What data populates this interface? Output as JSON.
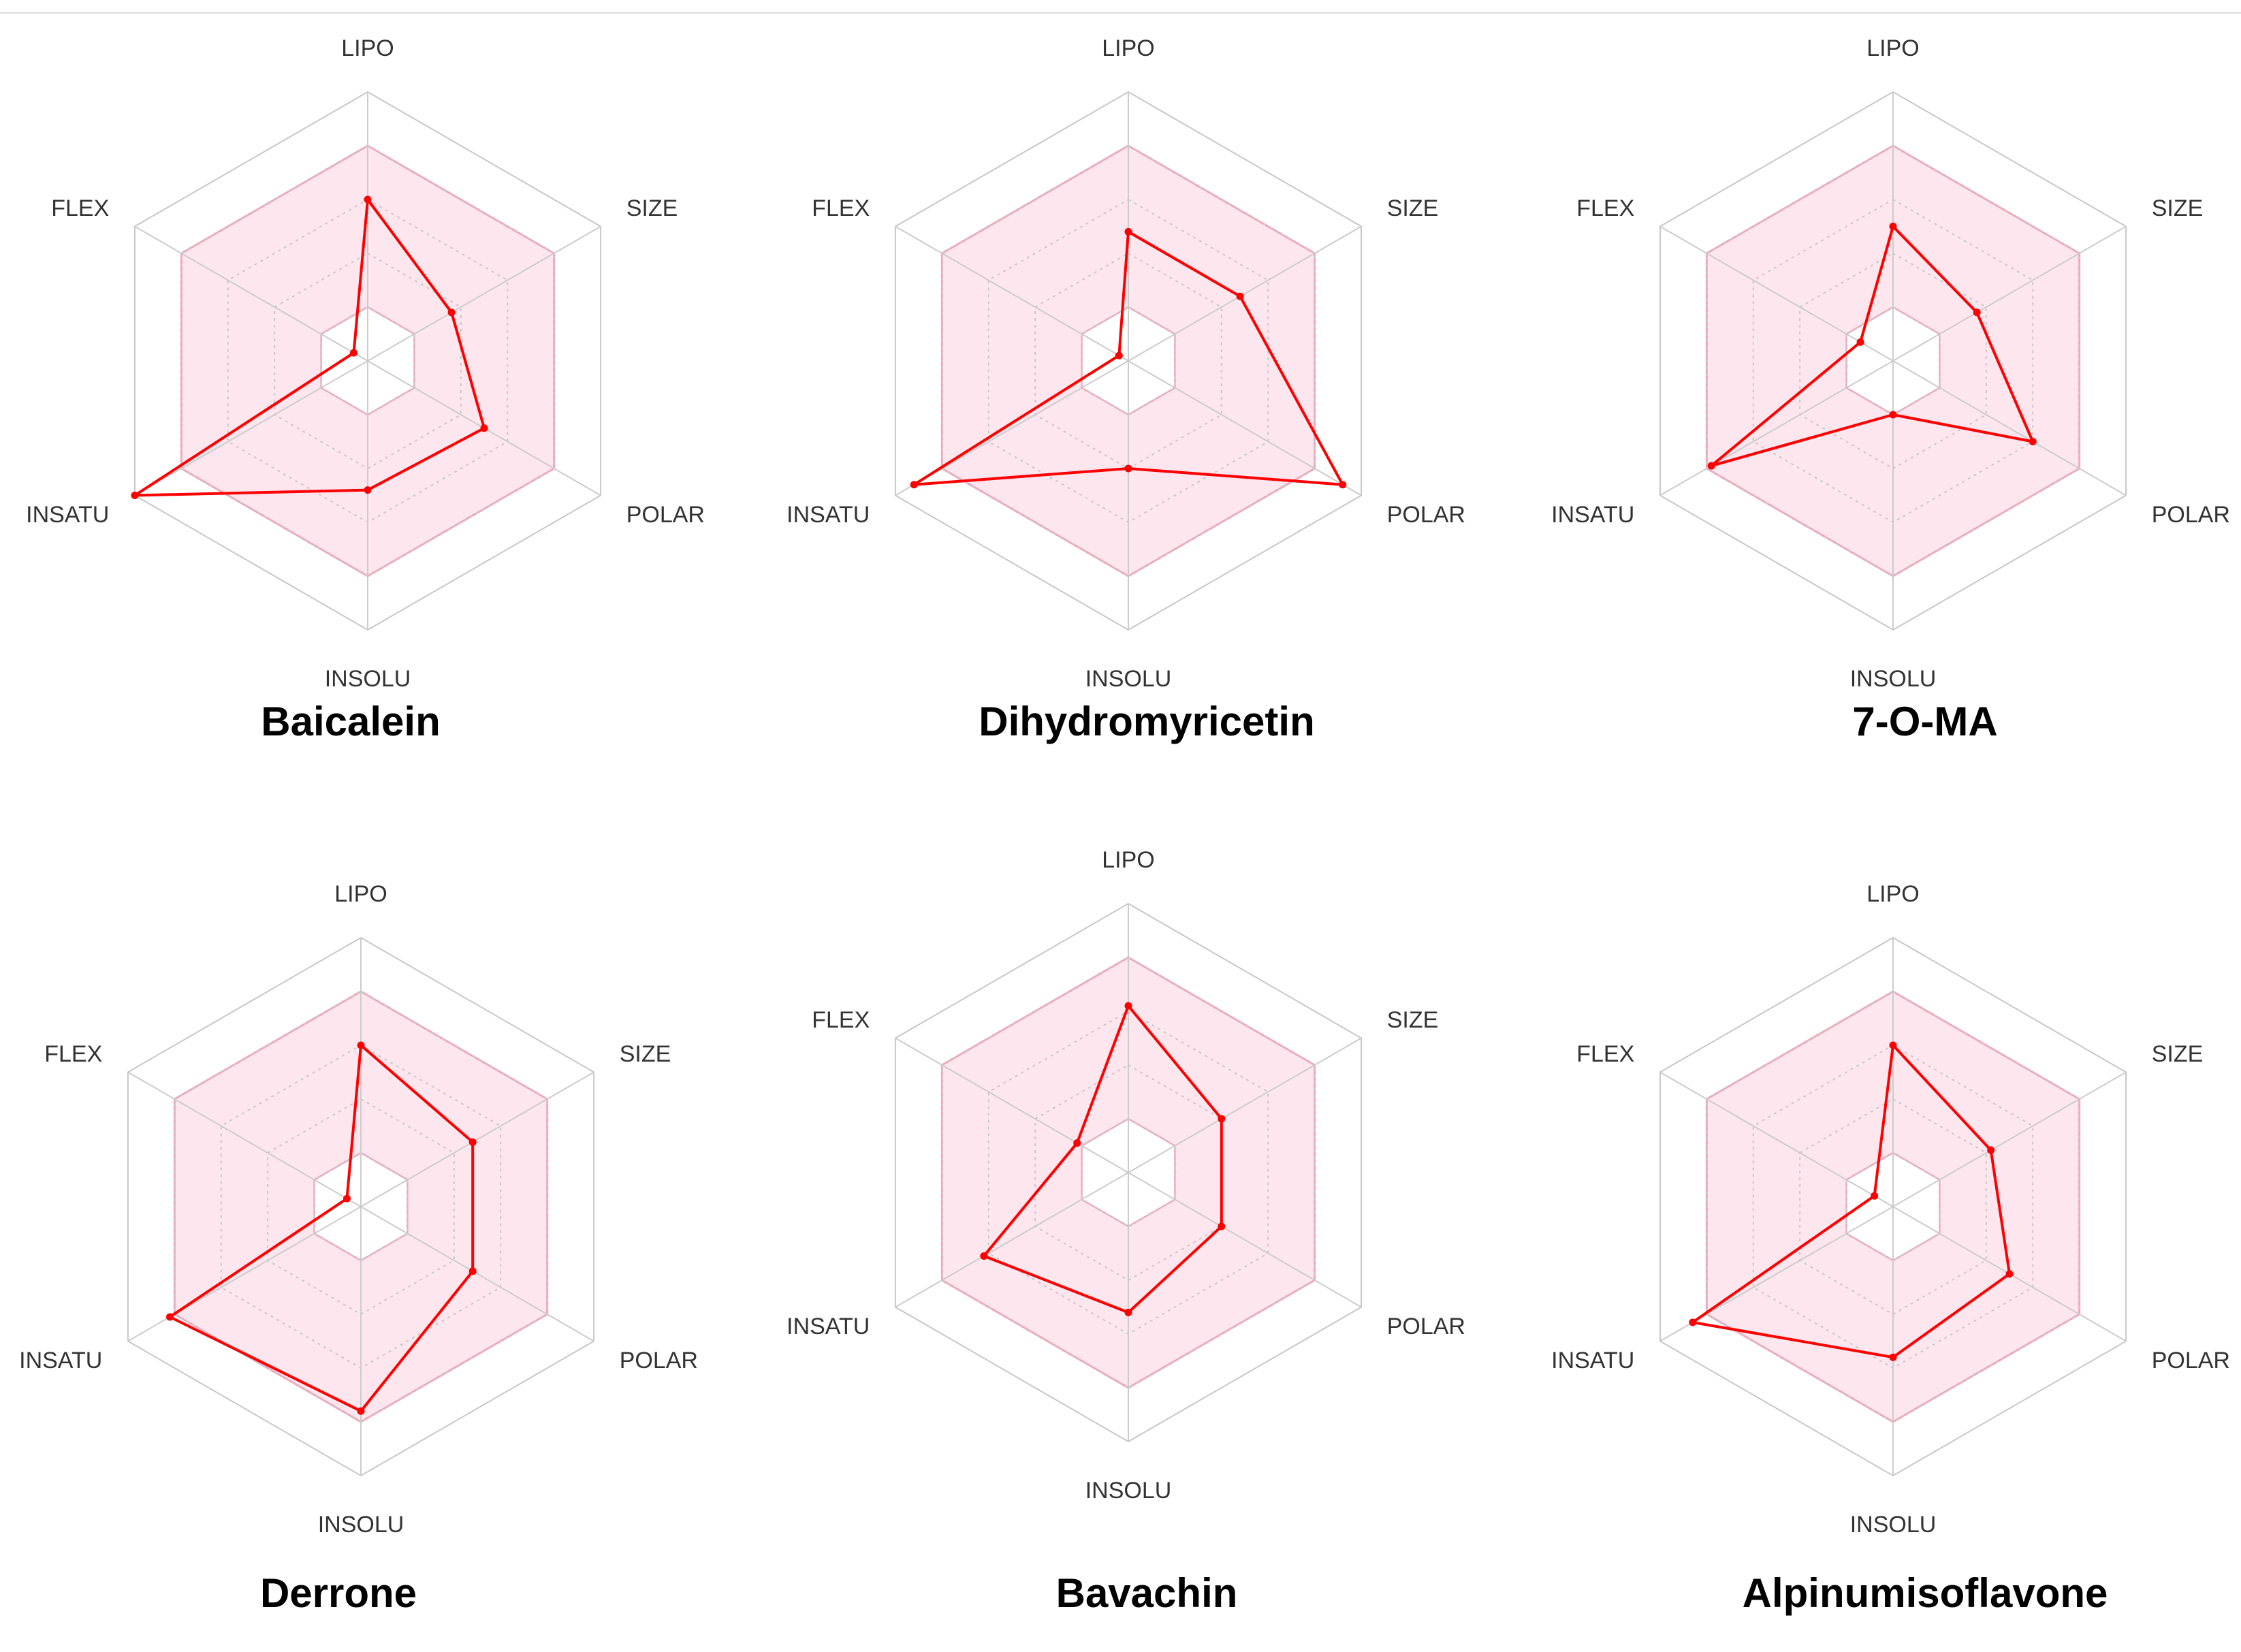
{
  "chart_data": [
    {
      "type": "radar",
      "title": "Baicalein",
      "axes": [
        "LIPO",
        "SIZE",
        "POLAR",
        "INSOLU",
        "INSATU",
        "FLEX"
      ],
      "scale": [
        -1,
        4
      ],
      "optimal_range": [
        0,
        3
      ],
      "values": [
        2.0,
        0.8,
        1.5,
        1.4,
        4.0,
        -0.7
      ]
    },
    {
      "type": "radar",
      "title": "Dihydromyricetin",
      "axes": [
        "LIPO",
        "SIZE",
        "POLAR",
        "INSOLU",
        "INSATU",
        "FLEX"
      ],
      "scale": [
        -1,
        4
      ],
      "optimal_range": [
        0,
        3
      ],
      "values": [
        1.4,
        1.4,
        3.6,
        1.0,
        3.6,
        -0.8
      ]
    },
    {
      "type": "radar",
      "title": "7-O-MA",
      "axes": [
        "LIPO",
        "SIZE",
        "POLAR",
        "INSOLU",
        "INSATU",
        "FLEX"
      ],
      "scale": [
        -1,
        4
      ],
      "optimal_range": [
        0,
        3
      ],
      "values": [
        1.5,
        0.8,
        2.0,
        0.0,
        2.9,
        -0.3
      ]
    },
    {
      "type": "radar",
      "title": "Derrone",
      "axes": [
        "LIPO",
        "SIZE",
        "POLAR",
        "INSOLU",
        "INSATU",
        "FLEX"
      ],
      "scale": [
        -1,
        4
      ],
      "optimal_range": [
        0,
        3
      ],
      "values": [
        2.0,
        1.4,
        1.4,
        2.8,
        3.1,
        -0.7
      ]
    },
    {
      "type": "radar",
      "title": "Bavachin",
      "axes": [
        "LIPO",
        "SIZE",
        "POLAR",
        "INSOLU",
        "INSATU",
        "FLEX"
      ],
      "scale": [
        -1,
        4
      ],
      "optimal_range": [
        0,
        3
      ],
      "values": [
        2.1,
        1.0,
        1.0,
        1.6,
        2.1,
        0.1
      ]
    },
    {
      "type": "radar",
      "title": "Alpinumisoflavone",
      "axes": [
        "LIPO",
        "SIZE",
        "POLAR",
        "INSOLU",
        "INSATU",
        "FLEX"
      ],
      "scale": [
        -1,
        4
      ],
      "optimal_range": [
        0,
        3
      ],
      "values": [
        2.0,
        1.1,
        1.5,
        1.8,
        3.3,
        -0.6
      ]
    }
  ]
}
